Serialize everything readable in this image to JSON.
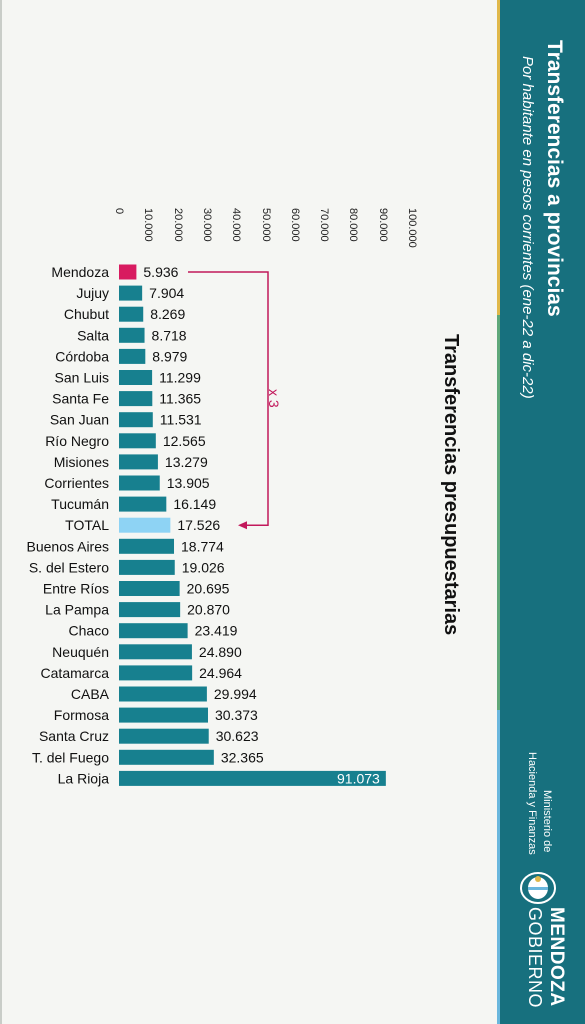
{
  "header": {
    "title": "Transferencias a provincias",
    "subtitle": "Por habitante en pesos corrientes (ene-22 a dic-22)"
  },
  "logo": {
    "ministry_line1": "Ministerio de",
    "ministry_line2": "Hacienda y Finanzas",
    "brand_line1": "MENDOZA",
    "brand_line2": "GOBIERNO"
  },
  "colors": {
    "panel": "#17707e",
    "bar": "#17808f",
    "highlight": "#d81b60",
    "total": "#8ed3f4",
    "annotation": "#c2185b"
  },
  "chart_data": {
    "type": "bar",
    "orientation": "horizontal",
    "title": "Transferencias presupuestarias",
    "xlim": [
      0,
      100000
    ],
    "ticks": [
      "0",
      "10.000",
      "20.000",
      "30.000",
      "40.000",
      "50.000",
      "60.000",
      "70.000",
      "80.000",
      "90.000",
      "100.000"
    ],
    "grid": false,
    "categories": [
      "Mendoza",
      "Jujuy",
      "Chubut",
      "Salta",
      "Córdoba",
      "San Luis",
      "Santa Fe",
      "San Juan",
      "Río Negro",
      "Misiones",
      "Corrientes",
      "Tucumán",
      "TOTAL",
      "Buenos Aires",
      "S. del Estero",
      "Entre Ríos",
      "La Pampa",
      "Chaco",
      "Neuquén",
      "Catamarca",
      "CABA",
      "Formosa",
      "Santa Cruz",
      "T. del Fuego",
      "La Rioja"
    ],
    "values": [
      5936,
      7904,
      8269,
      8718,
      8979,
      11299,
      11365,
      11531,
      12565,
      13279,
      13905,
      16149,
      17526,
      18774,
      19026,
      20695,
      20870,
      23419,
      24890,
      24964,
      29994,
      30373,
      30623,
      32365,
      91073
    ],
    "value_labels": [
      "5.936",
      "7.904",
      "8.269",
      "8.718",
      "8.979",
      "11.299",
      "11.365",
      "11.531",
      "12.565",
      "13.279",
      "13.905",
      "16.149",
      "17.526",
      "18.774",
      "19.026",
      "20.695",
      "20.870",
      "23.419",
      "24.890",
      "24.964",
      "29.994",
      "30.373",
      "30.623",
      "32.365",
      "91.073"
    ],
    "highlight_index": 0,
    "total_index": 12,
    "annotation": {
      "text": "x 3",
      "from": "Mendoza",
      "to": "TOTAL"
    }
  }
}
